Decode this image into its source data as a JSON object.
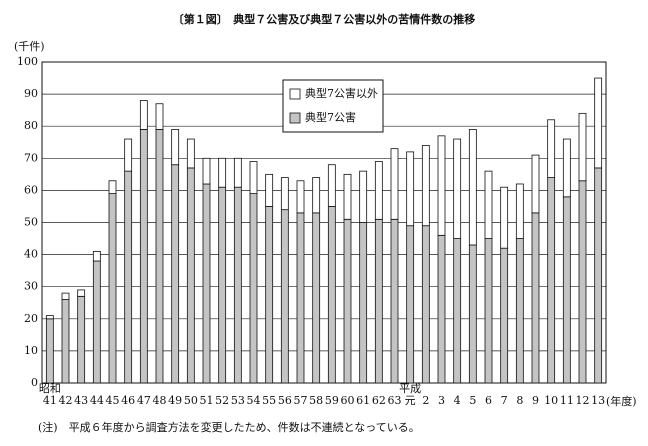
{
  "chart_data": {
    "type": "stacked_bar",
    "title": "〔第１図〕　典型７公害及び典型７公害以外の苦情件数の推移",
    "y_label": "(千件)",
    "x_label": "(年度)",
    "era_labels": [
      "昭和",
      "平成"
    ],
    "note": "(注)　平成６年度から調査方法を変更したため、件数は不連続となっている。",
    "categories": [
      "41",
      "42",
      "43",
      "44",
      "45",
      "46",
      "47",
      "48",
      "49",
      "50",
      "51",
      "52",
      "53",
      "54",
      "55",
      "56",
      "57",
      "58",
      "59",
      "60",
      "61",
      "62",
      "63",
      "元",
      "2",
      "3",
      "4",
      "5",
      "6",
      "7",
      "8",
      "9",
      "10",
      "11",
      "12",
      "13"
    ],
    "series": [
      {
        "name": "典型7公害",
        "color": "#c4c4c4",
        "values": [
          20,
          26,
          27,
          38,
          59,
          66,
          79,
          79,
          68,
          67,
          62,
          61,
          61,
          59,
          55,
          54,
          53,
          53,
          55,
          51,
          50,
          51,
          51,
          49,
          49,
          46,
          45,
          43,
          45,
          42,
          45,
          53,
          64,
          58,
          63,
          67
        ]
      },
      {
        "name": "典型7公害以外",
        "color": "#ffffff",
        "values": [
          1,
          2,
          2,
          3,
          4,
          10,
          9,
          8,
          11,
          9,
          8,
          9,
          9,
          10,
          10,
          10,
          10,
          11,
          13,
          14,
          16,
          18,
          22,
          23,
          25,
          31,
          31,
          36,
          21,
          19,
          17,
          18,
          18,
          18,
          21,
          28
        ]
      }
    ],
    "ylim": [
      0,
      100
    ],
    "yticks": [
      0,
      10,
      20,
      30,
      40,
      50,
      60,
      70,
      80,
      90,
      100
    ],
    "grid": true
  }
}
